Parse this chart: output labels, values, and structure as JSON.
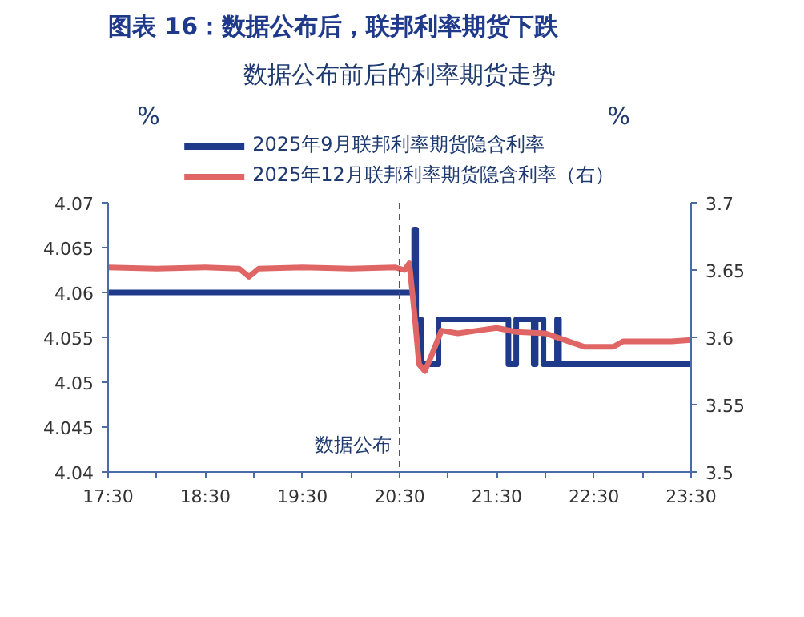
{
  "chart_data": {
    "type": "line",
    "title": "图表 16：数据公布后，联邦利率期货下跌",
    "subtitle": "数据公布前后的利率期货走势",
    "ylabel": "%",
    "y2label": "%",
    "xlim": [
      17.5,
      23.5
    ],
    "xticks": [
      {
        "value": 17.5,
        "label": "17:30"
      },
      {
        "value": 18,
        "label": null
      },
      {
        "value": 18.5,
        "label": "18:30"
      },
      {
        "value": 19,
        "label": null
      },
      {
        "value": 19.5,
        "label": "19:30"
      },
      {
        "value": 20,
        "label": null
      },
      {
        "value": 20.5,
        "label": "20:30"
      },
      {
        "value": 21,
        "label": null
      },
      {
        "value": 21.5,
        "label": "21:30"
      },
      {
        "value": 22,
        "label": null
      },
      {
        "value": 22.5,
        "label": "22:30"
      },
      {
        "value": 23,
        "label": null
      },
      {
        "value": 23.5,
        "label": "23:30"
      }
    ],
    "ylim": [
      4.04,
      4.07
    ],
    "yticks": [
      4.04,
      4.045,
      4.05,
      4.055,
      4.06,
      4.065,
      4.07
    ],
    "y2lim": [
      3.5,
      3.7
    ],
    "y2ticks": [
      3.5,
      3.55,
      3.6,
      3.65,
      3.7
    ],
    "legend": "top",
    "grid": false,
    "ref_lines": [
      {
        "axis": "x",
        "value": 20.5,
        "label": "数据公布",
        "color": "#555555",
        "line_style": "dashed"
      }
    ],
    "series": [
      {
        "name": "2025年9月联邦利率期货隐含利率",
        "color": "#1f3a8a",
        "type": "step",
        "x": [
          17.5,
          20.65,
          20.67,
          20.72,
          20.9,
          21.62,
          21.7,
          21.88,
          21.9,
          21.98,
          22.12,
          22.14,
          23.5
        ],
        "values": [
          4.06,
          4.067,
          4.057,
          4.052,
          4.057,
          4.052,
          4.057,
          4.052,
          4.057,
          4.052,
          4.057,
          4.052,
          4.052
        ]
      },
      {
        "name": "2025年12月联邦利率期货隐含利率（右）",
        "color": "#e06666",
        "axis": "y2",
        "x": [
          17.5,
          18.0,
          18.5,
          18.85,
          18.95,
          19.05,
          19.5,
          20.0,
          20.45,
          20.55,
          20.6,
          20.65,
          20.7,
          20.76,
          20.82,
          20.93,
          21.1,
          21.3,
          21.5,
          21.7,
          22.0,
          22.2,
          22.4,
          22.7,
          22.8,
          23.0,
          23.3,
          23.5
        ],
        "values": [
          3.652,
          3.651,
          3.652,
          3.651,
          3.645,
          3.651,
          3.652,
          3.651,
          3.652,
          3.65,
          3.655,
          3.62,
          3.58,
          3.575,
          3.585,
          3.605,
          3.603,
          3.605,
          3.607,
          3.604,
          3.603,
          3.598,
          3.593,
          3.593,
          3.597,
          3.597,
          3.597,
          3.598
        ]
      }
    ]
  }
}
